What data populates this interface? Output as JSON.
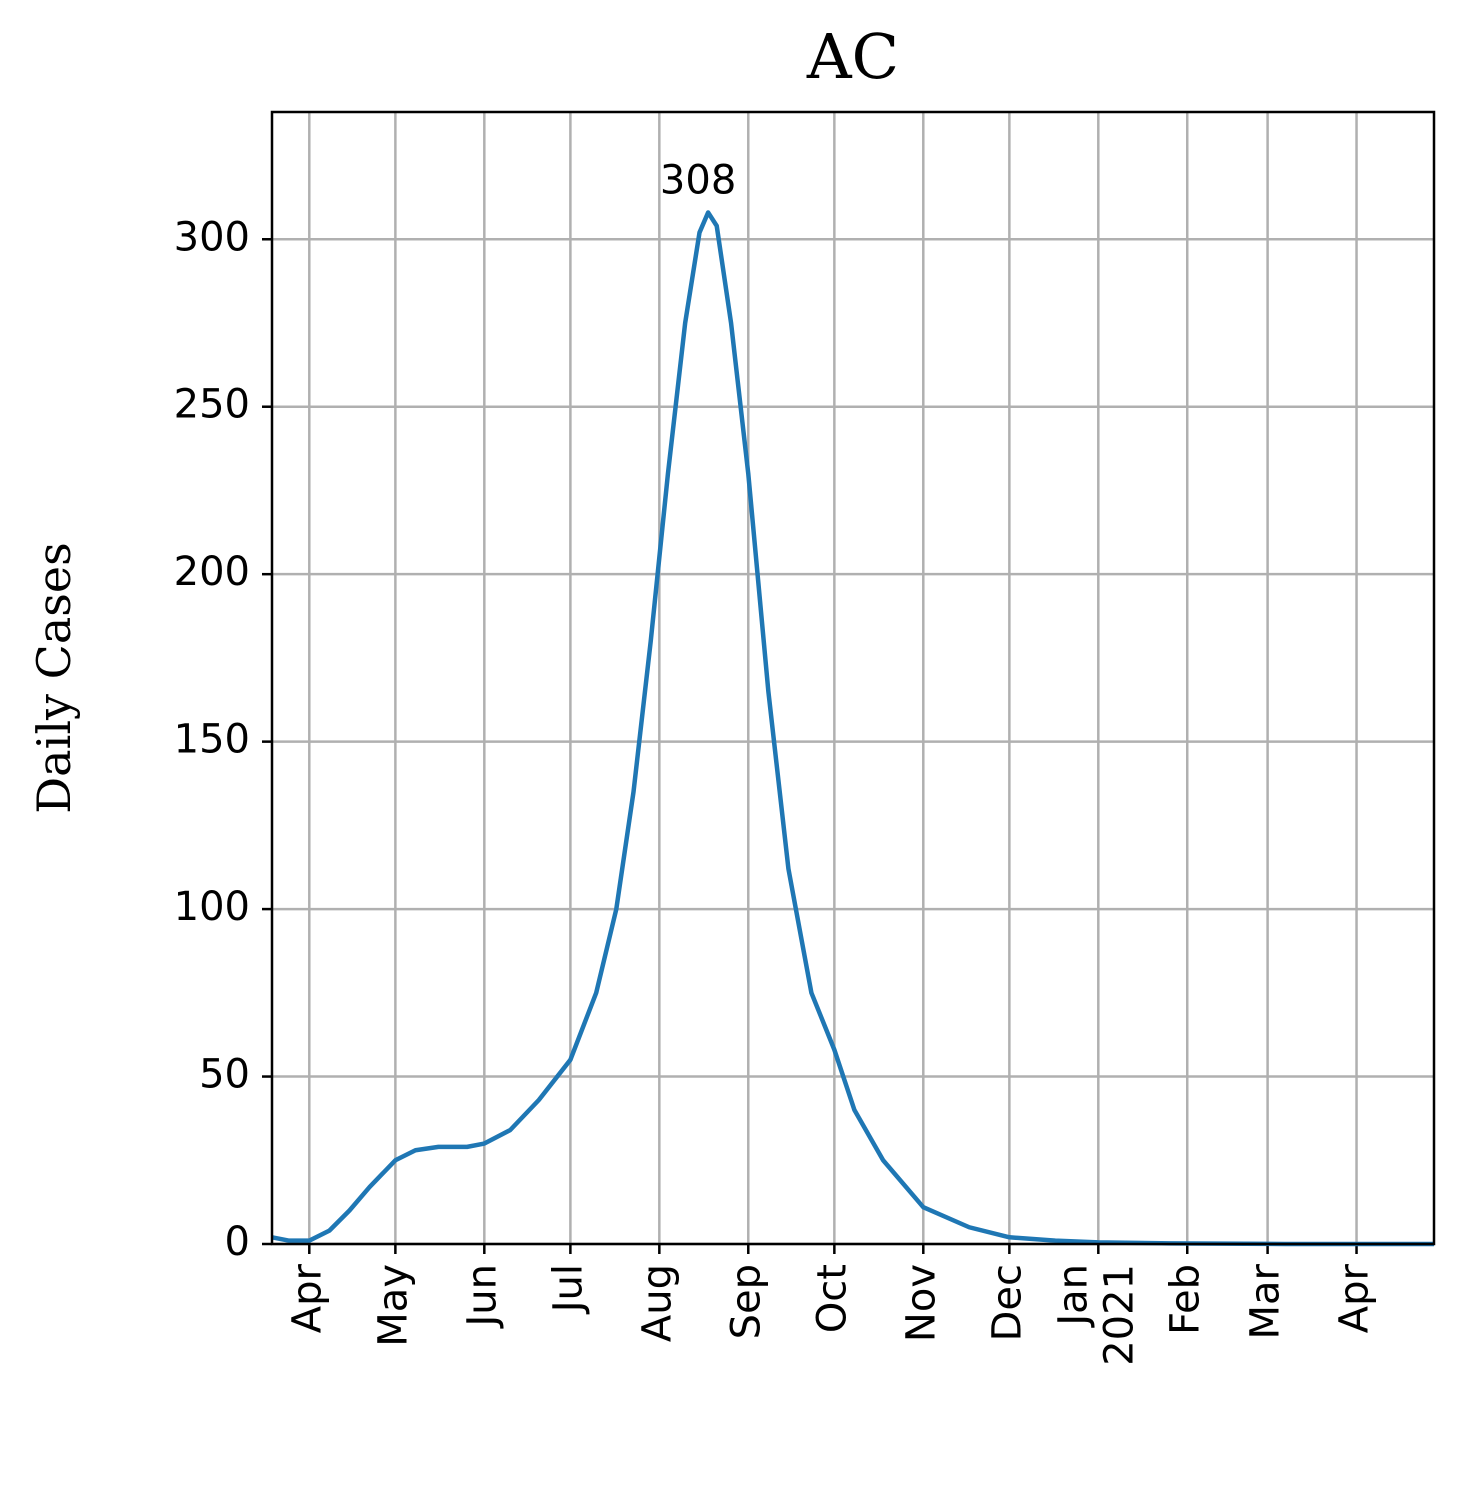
{
  "chart_data": {
    "type": "line",
    "title": "AC",
    "ylabel": "Daily Cases",
    "x": [
      -13,
      -7,
      0,
      7,
      14,
      21,
      30,
      37,
      45,
      55,
      61,
      70,
      80,
      91,
      100,
      107,
      113,
      119,
      125,
      131,
      136,
      139,
      142,
      147,
      153,
      160,
      167,
      175,
      183,
      190,
      200,
      214,
      230,
      244,
      260,
      275,
      300,
      340,
      392
    ],
    "series": [
      {
        "name": "AC",
        "color": "#1f77b4",
        "values": [
          2,
          1,
          1,
          4,
          10,
          17,
          25,
          28,
          29,
          29,
          30,
          34,
          43,
          55,
          75,
          100,
          135,
          180,
          230,
          275,
          302,
          308,
          304,
          275,
          230,
          165,
          112,
          75,
          58,
          40,
          25,
          11,
          5,
          2,
          1,
          0.5,
          0.2,
          0,
          0
        ]
      }
    ],
    "annotations": [
      {
        "text": "308",
        "x": 139,
        "y": 308
      }
    ],
    "xlim": [
      -13,
      392
    ],
    "ylim": [
      0,
      338
    ],
    "xticks": [
      {
        "value": 0,
        "label": "Apr"
      },
      {
        "value": 30,
        "label": "May"
      },
      {
        "value": 61,
        "label": "Jun"
      },
      {
        "value": 91,
        "label": "Jul"
      },
      {
        "value": 122,
        "label": "Aug"
      },
      {
        "value": 153,
        "label": "Sep"
      },
      {
        "value": 183,
        "label": "Oct"
      },
      {
        "value": 214,
        "label": "Nov"
      },
      {
        "value": 244,
        "label": "Dec"
      },
      {
        "value": 275,
        "label": "Jan\n2021"
      },
      {
        "value": 306,
        "label": "Feb"
      },
      {
        "value": 334,
        "label": "Mar"
      },
      {
        "value": 365,
        "label": "Apr"
      }
    ],
    "yticks": [
      0,
      50,
      100,
      150,
      200,
      250,
      300
    ],
    "grid": true
  }
}
